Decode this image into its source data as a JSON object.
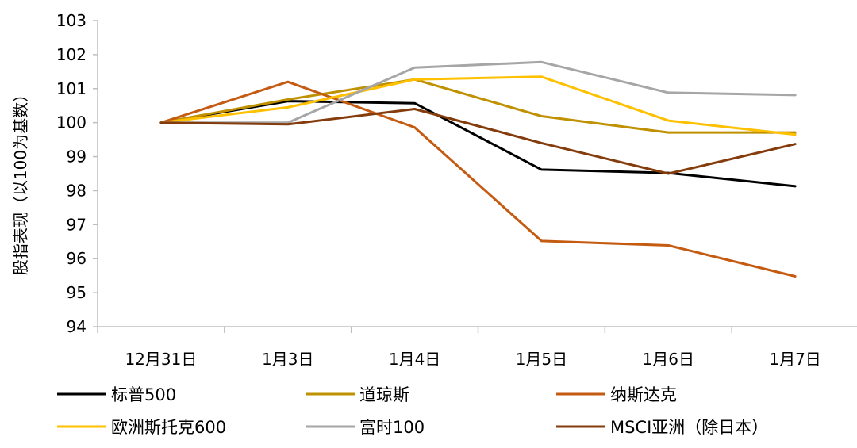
{
  "chart_data": {
    "type": "line",
    "ylabel": "股指表现（以100为基数）",
    "xlabel": "",
    "title": "",
    "categories": [
      "12月31日",
      "1月3日",
      "1月4日",
      "1月5日",
      "1月6日",
      "1月7日"
    ],
    "ylim": [
      94,
      103
    ],
    "yticks": [
      94,
      95,
      96,
      97,
      98,
      99,
      100,
      101,
      102,
      103
    ],
    "legend_position": "bottom",
    "series": [
      {
        "name": "标普500",
        "color": "#000000",
        "values": [
          100.0,
          100.63,
          100.57,
          98.62,
          98.52,
          98.13
        ]
      },
      {
        "name": "道琼斯",
        "color": "#BF9000",
        "values": [
          100.0,
          100.68,
          101.27,
          100.19,
          99.71,
          99.71
        ]
      },
      {
        "name": "纳斯达克",
        "color": "#C55A11",
        "values": [
          100.0,
          101.2,
          99.86,
          96.52,
          96.39,
          95.48
        ]
      },
      {
        "name": "欧洲斯托克600",
        "color": "#FFC000",
        "values": [
          100.0,
          100.45,
          101.27,
          101.35,
          100.06,
          99.65
        ]
      },
      {
        "name": "富时100",
        "color": "#A6A6A6",
        "values": [
          100.0,
          100.0,
          101.62,
          101.78,
          100.88,
          100.81
        ]
      },
      {
        "name": "MSCI亚洲（除日本）",
        "color": "#843C0C",
        "values": [
          100.0,
          99.95,
          100.4,
          99.4,
          98.5,
          99.37
        ]
      }
    ]
  }
}
